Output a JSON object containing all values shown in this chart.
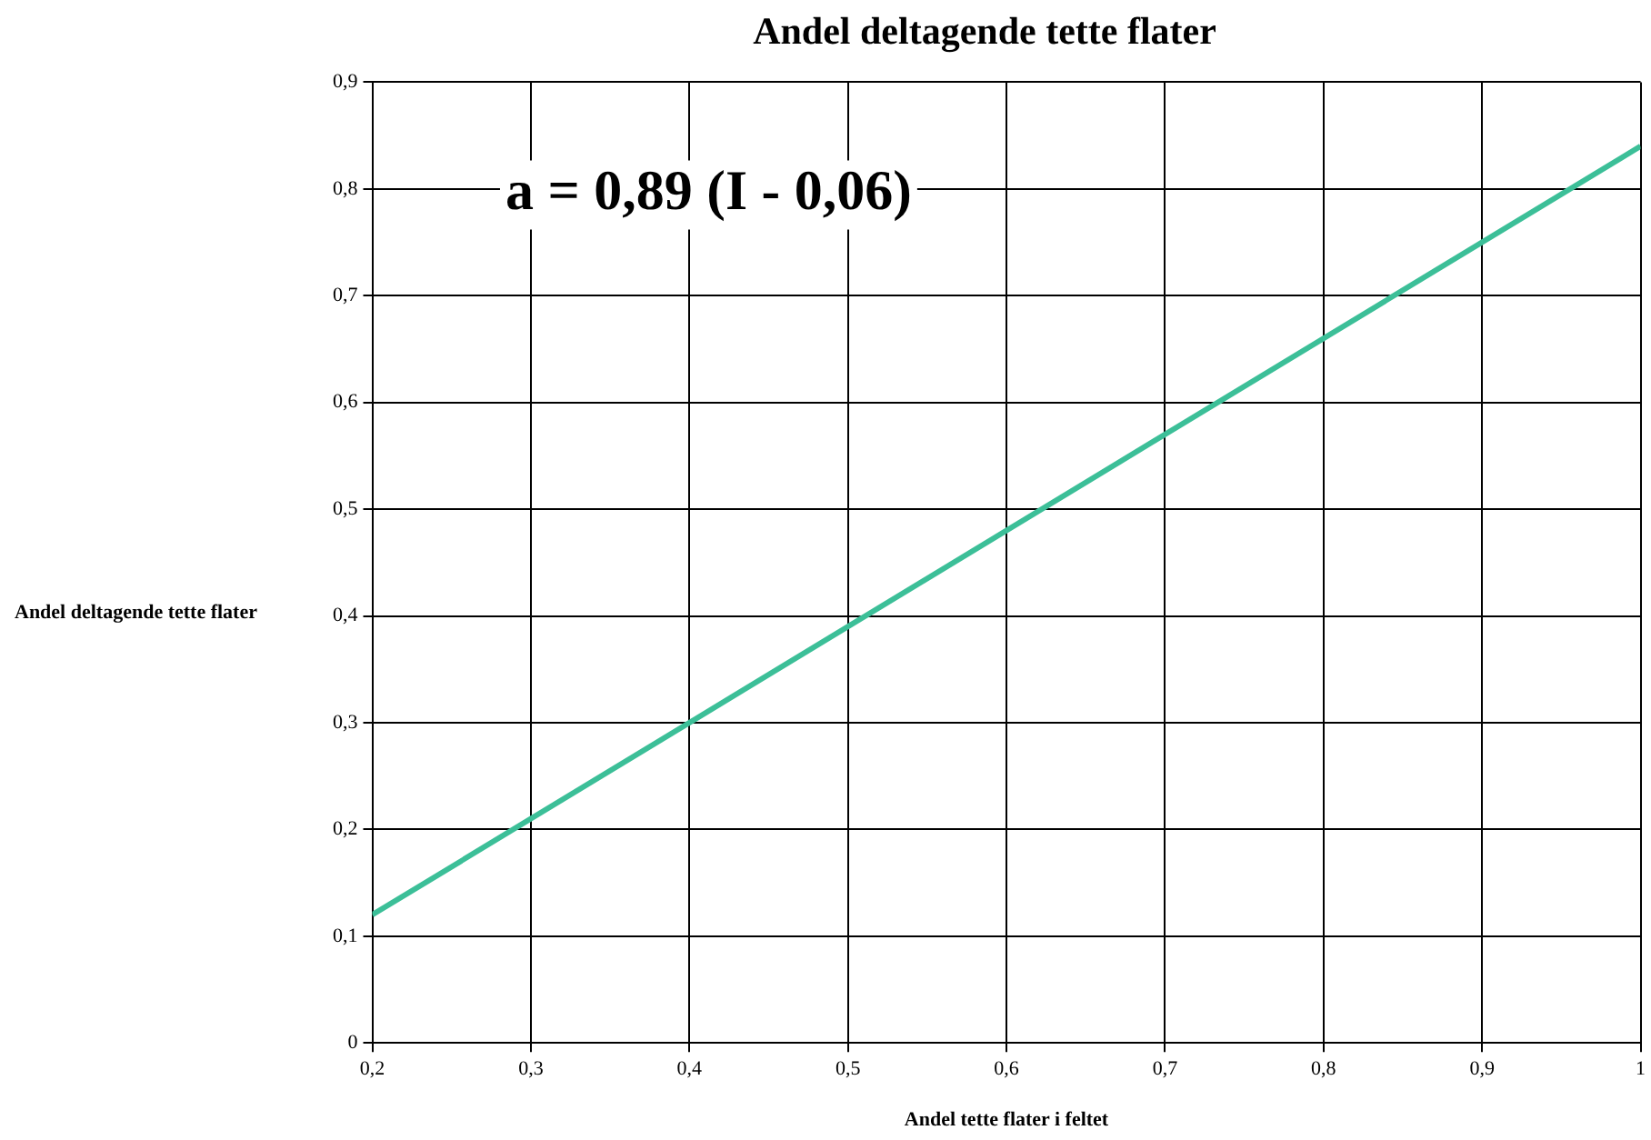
{
  "chart_data": {
    "type": "line",
    "title": "Andel deltagende tette flater",
    "xlabel": "Andel tette flater i feltet",
    "ylabel": "Andel deltagende tette flater",
    "annotations": [
      "a = 0,89 (I - 0,06)"
    ],
    "x": [
      0.2,
      1
    ],
    "series": [
      {
        "color": "#3cbf98",
        "values": [
          0.12,
          0.84
        ]
      }
    ],
    "xlim": [
      0.2,
      1
    ],
    "ylim": [
      0,
      0.9
    ],
    "xticks": [
      {
        "value": 0.2,
        "label": "0,2"
      },
      {
        "value": 0.3,
        "label": "0,3"
      },
      {
        "value": 0.4,
        "label": "0,4"
      },
      {
        "value": 0.5,
        "label": "0,5"
      },
      {
        "value": 0.6,
        "label": "0,6"
      },
      {
        "value": 0.7,
        "label": "0,7"
      },
      {
        "value": 0.8,
        "label": "0,8"
      },
      {
        "value": 0.9,
        "label": "0,9"
      },
      1
    ],
    "yticks": [
      0,
      {
        "value": 0.1,
        "label": "0,1"
      },
      {
        "value": 0.2,
        "label": "0,2"
      },
      {
        "value": 0.3,
        "label": "0,3"
      },
      {
        "value": 0.4,
        "label": "0,4"
      },
      {
        "value": 0.5,
        "label": "0,5"
      },
      {
        "value": 0.6,
        "label": "0,6"
      },
      {
        "value": 0.7,
        "label": "0,7"
      },
      {
        "value": 0.8,
        "label": "0,8"
      },
      {
        "value": 0.9,
        "label": "0,9"
      }
    ],
    "grid": true,
    "legend": false,
    "marker": "none",
    "line_style": "solid"
  }
}
